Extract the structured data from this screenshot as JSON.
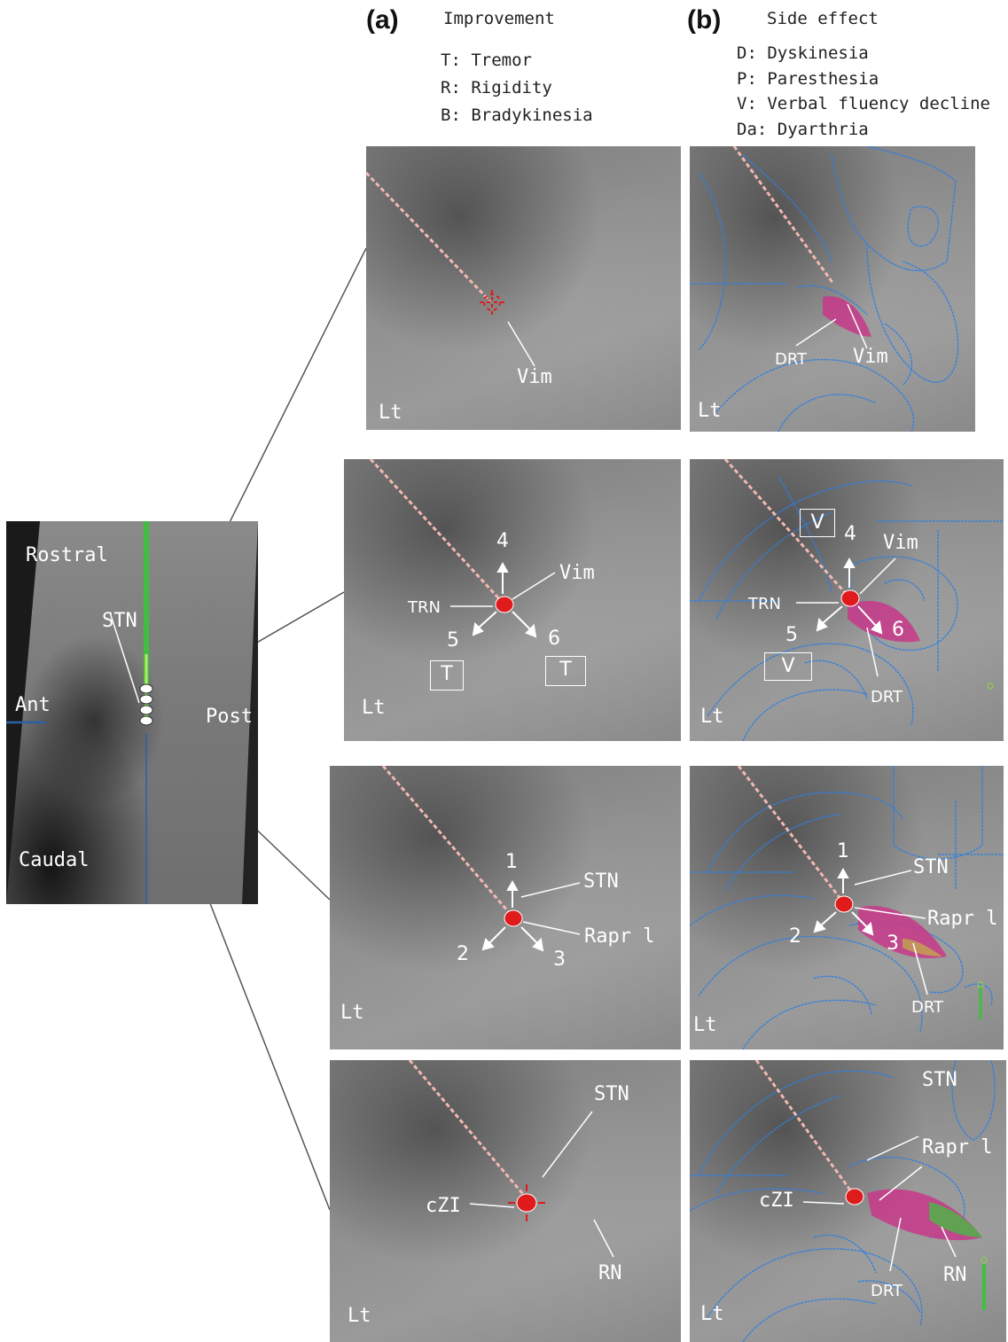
{
  "panel_a": {
    "letter": "(a)",
    "title": "Improvement",
    "items": [
      "T: Tremor",
      "R: Rigidity",
      "B: Bradykinesia"
    ]
  },
  "panel_b": {
    "letter": "(b)",
    "title": "Side effect",
    "items": [
      "D: Dyskinesia",
      "P: Paresthesia",
      "V: Verbal fluency decline",
      "Da: Dyarthria"
    ]
  },
  "sagittal": {
    "rostral": "Rostral",
    "caudal": "Caudal",
    "ant": "Ant",
    "post": "Post",
    "stn": "STN"
  },
  "rows": [
    {
      "a": {
        "side": "Lt",
        "labels": {
          "vim": "Vim"
        }
      },
      "b": {
        "side": "Lt",
        "labels": {
          "drt": "DRT",
          "vim": "Vim"
        }
      }
    },
    {
      "a": {
        "side": "Lt",
        "labels": {
          "trn": "TRN",
          "vim": "Vim",
          "n4": "4",
          "n5": "5",
          "n6": "6",
          "box1": "T",
          "box2": "T"
        }
      },
      "b": {
        "side": "Lt",
        "labels": {
          "trn": "TRN",
          "vim": "Vim",
          "n4": "4",
          "n5": "5",
          "n6": "6",
          "box1": "V",
          "box2": "V",
          "drt": "DRT"
        }
      }
    },
    {
      "a": {
        "side": "Lt",
        "labels": {
          "stn": "STN",
          "rapri": "Rapr l",
          "n1": "1",
          "n2": "2",
          "n3": "3"
        }
      },
      "b": {
        "side": "Lt",
        "labels": {
          "stn": "STN",
          "rapri": "Rapr l",
          "n1": "1",
          "n2": "2",
          "n3": "3",
          "drt": "DRT"
        }
      }
    },
    {
      "a": {
        "side": "Lt",
        "labels": {
          "stn": "STN",
          "czi": "cZI",
          "rn": "RN"
        }
      },
      "b": {
        "side": "Lt",
        "labels": {
          "stn": "STN",
          "rapri": "Rapr l",
          "czi": "cZI",
          "drt": "DRT",
          "rn": "RN"
        }
      }
    }
  ],
  "colors": {
    "atlas_outline": "#2f7fe0",
    "electrode": "#e01b1b",
    "trajectory": "#f2b9b0",
    "tract": "#c8388a",
    "lead_green": "#3fbf3f"
  }
}
